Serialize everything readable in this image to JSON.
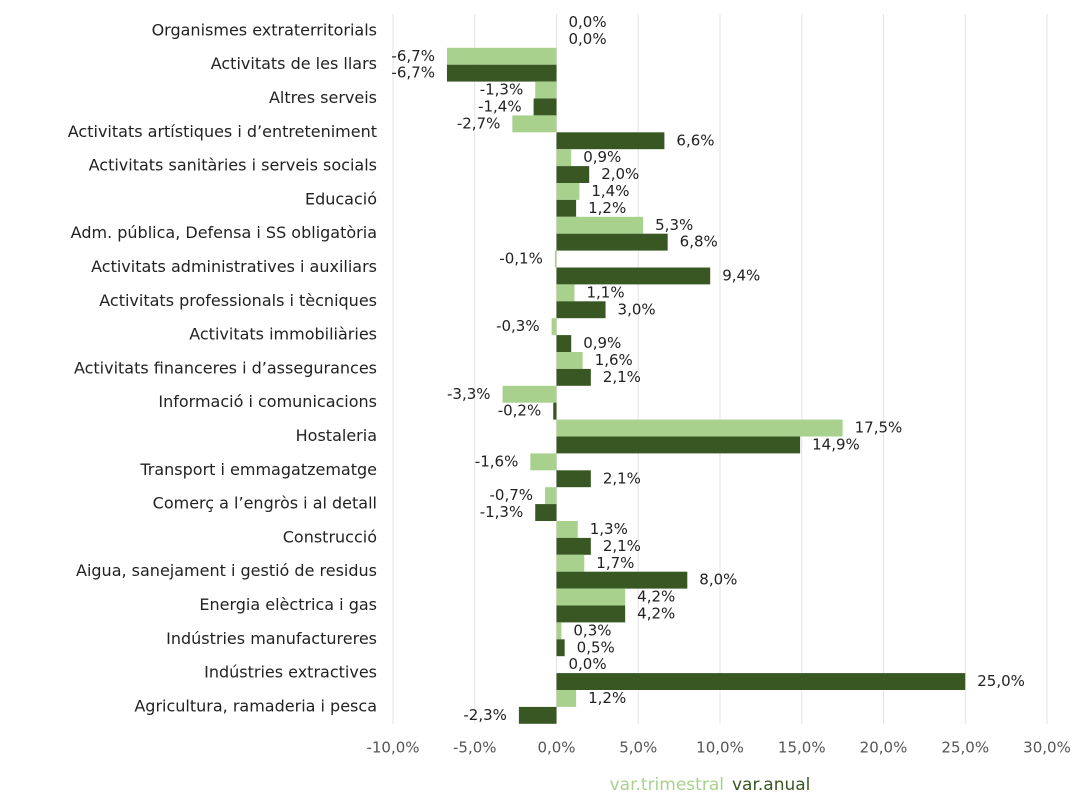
{
  "chart_data": {
    "type": "bar",
    "orientation": "horizontal",
    "categories": [
      "Organismes extraterritorials",
      "Activitats de les llars",
      "Altres serveis",
      "Activitats artístiques i d’entreteniment",
      "Activitats sanitàries i serveis socials",
      "Educació",
      "Adm. pública, Defensa i SS obligatòria",
      "Activitats administratives i auxiliars",
      "Activitats professionals i tècniques",
      "Activitats immobiliàries",
      "Activitats financeres i d’assegurances",
      "Informació i comunicacions",
      "Hostaleria",
      "Transport i emmagatzematge",
      "Comerç a l’engròs i al detall",
      "Construcció",
      "Aigua, sanejament i gestió de residus",
      "Energia elèctrica i gas",
      "Indústries manufactureres",
      "Indústries extractives",
      "Agricultura, ramaderia i pesca"
    ],
    "series": [
      {
        "name": "var.trimestral",
        "color": "#a9d18e",
        "values": [
          0.0,
          -6.7,
          -1.3,
          -2.7,
          0.9,
          1.4,
          5.3,
          -0.1,
          1.1,
          -0.3,
          1.6,
          -3.3,
          17.5,
          -1.6,
          -0.7,
          1.3,
          1.7,
          4.2,
          0.3,
          0.0,
          1.2
        ],
        "value_labels": [
          "0,0%",
          "-6,7%",
          "-1,3%",
          "-2,7%",
          "0,9%",
          "1,4%",
          "5,3%",
          "-0,1%",
          "1,1%",
          "-0,3%",
          "1,6%",
          "-3,3%",
          "17,5%",
          "-1,6%",
          "-0,7%",
          "1,3%",
          "1,7%",
          "4,2%",
          "0,3%",
          "0,0%",
          "1,2%"
        ]
      },
      {
        "name": "var.anual",
        "color": "#385723",
        "values": [
          0.0,
          -6.7,
          -1.4,
          6.6,
          2.0,
          1.2,
          6.8,
          9.4,
          3.0,
          0.9,
          2.1,
          -0.2,
          14.9,
          2.1,
          -1.3,
          2.1,
          8.0,
          4.2,
          0.5,
          25.0,
          -2.3
        ],
        "value_labels": [
          "0,0%",
          "-6,7%",
          "-1,4%",
          "6,6%",
          "2,0%",
          "1,2%",
          "6,8%",
          "9,4%",
          "3,0%",
          "0,9%",
          "2,1%",
          "-0,2%",
          "14,9%",
          "2,1%",
          "-1,3%",
          "2,1%",
          "8,0%",
          "4,2%",
          "0,5%",
          "25,0%",
          "-2,3%"
        ]
      }
    ],
    "xlim": [
      -10,
      30
    ],
    "xticks": [
      {
        "value": -10,
        "label": "-10,0%"
      },
      {
        "value": -5,
        "label": "-5,0%"
      },
      {
        "value": 0,
        "label": "0,0%"
      },
      {
        "value": 5,
        "label": "5,0%"
      },
      {
        "value": 10,
        "label": "10,0%"
      },
      {
        "value": 15,
        "label": "15,0%"
      },
      {
        "value": 20,
        "label": "20,0%"
      },
      {
        "value": 25,
        "label": "25,0%"
      },
      {
        "value": 30,
        "label": "30,0%"
      }
    ],
    "grid": true,
    "legend": "bottom"
  }
}
